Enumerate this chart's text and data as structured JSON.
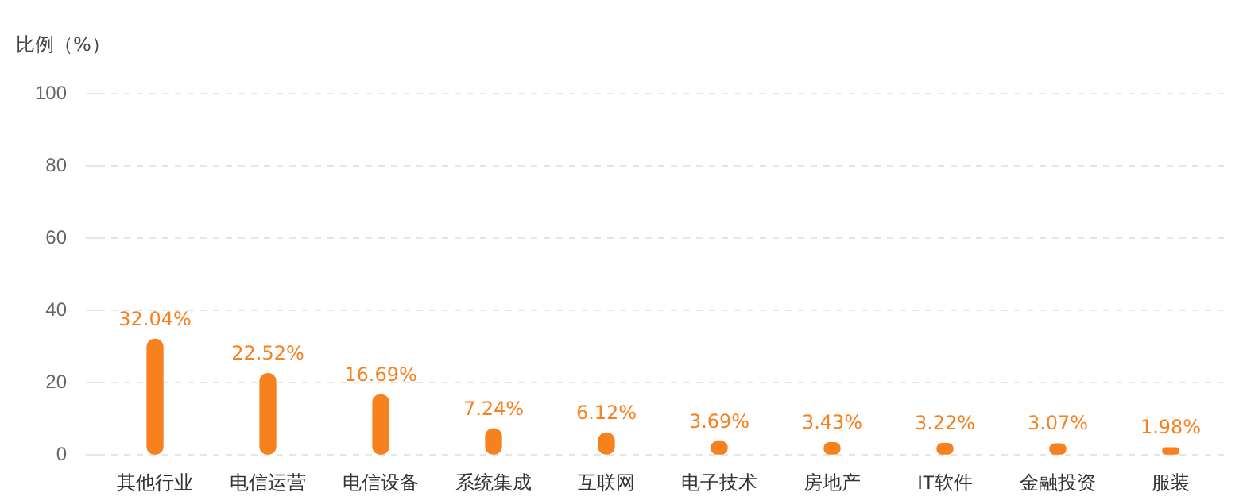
{
  "chart_data": {
    "type": "bar",
    "ylabel": "比例（%）",
    "categories": [
      "其他行业",
      "电信运营",
      "电信设备",
      "系统集成",
      "互联网",
      "电子技术",
      "房地产",
      "IT软件",
      "金融投资",
      "服装"
    ],
    "values": [
      32.04,
      22.52,
      16.69,
      7.24,
      6.12,
      3.69,
      3.43,
      3.22,
      3.07,
      1.98
    ],
    "value_labels": [
      "32.04%",
      "22.52%",
      "16.69%",
      "7.24%",
      "6.12%",
      "3.69%",
      "3.43%",
      "3.22%",
      "3.07%",
      "1.98%"
    ],
    "color": "#f7801f",
    "ylim": [
      0,
      100
    ],
    "yticks": [
      0,
      20,
      40,
      60,
      80,
      100
    ],
    "grid": "y",
    "legend": false
  }
}
